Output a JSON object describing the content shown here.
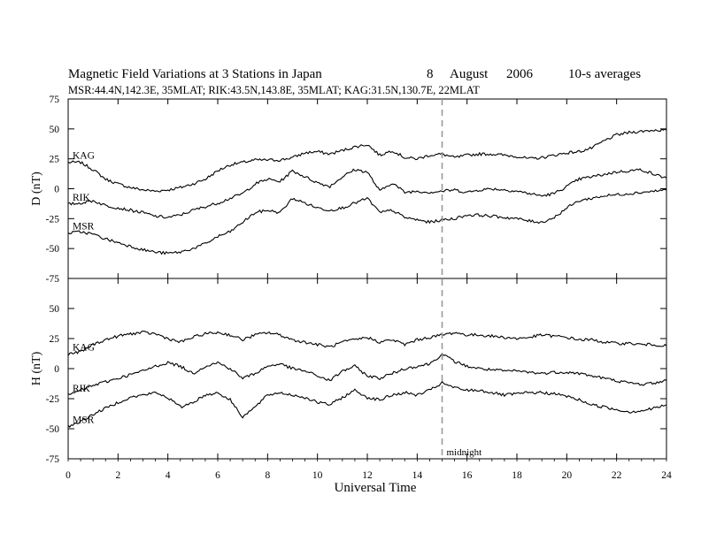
{
  "chart_data": {
    "type": "line",
    "title_parts": [
      "Magnetic Field Variations at 3 Stations in Japan",
      "8",
      "August",
      "2006",
      "10-s averages"
    ],
    "subtitle": "MSR:44.4N,142.3E, 35MLAT;   RIK:43.5N,143.8E, 35MLAT;   KAG:31.5N,130.7E, 22MLAT",
    "xlabel": "Universal Time",
    "xlim": [
      0,
      24
    ],
    "x_ticks": [
      0,
      2,
      4,
      6,
      8,
      10,
      12,
      14,
      16,
      18,
      20,
      22,
      24
    ],
    "x_tick_labels": [
      "0",
      "2",
      "4",
      "6",
      "8",
      "10",
      "12",
      "14",
      "16",
      "18",
      "20",
      "22",
      "24"
    ],
    "annotation": {
      "x": 15,
      "label": "midnight",
      "style": "dashed"
    },
    "panels": [
      {
        "ylabel": "D (nT)",
        "ylim": [
          -75,
          75
        ],
        "y_tick_labels": [
          "75",
          "50",
          "25",
          "0",
          "-25",
          "-50",
          "-75"
        ],
        "series": [
          {
            "name": "KAG",
            "x": [
              0,
              0.5,
              1,
              1.5,
              2,
              2.5,
              3,
              3.5,
              4,
              4.5,
              5,
              5.5,
              6,
              6.5,
              7,
              7.5,
              8,
              8.5,
              9,
              9.5,
              10,
              10.5,
              11,
              11.5,
              12,
              12.5,
              13,
              13.5,
              14,
              14.5,
              15,
              15.5,
              16,
              16.5,
              17,
              17.5,
              18,
              18.5,
              19,
              19.5,
              20,
              20.5,
              21,
              21.5,
              22,
              22.5,
              23,
              23.5,
              24
            ],
            "values": [
              22,
              22,
              16,
              8,
              4,
              1,
              -1,
              -2,
              -1,
              1,
              4,
              8,
              15,
              20,
              22,
              24,
              24,
              24,
              26,
              30,
              31,
              29,
              32,
              35,
              37,
              28,
              32,
              26,
              25,
              28,
              29,
              26,
              28,
              29,
              29,
              28,
              27,
              25,
              26,
              28,
              30,
              31,
              34,
              40,
              45,
              47,
              48,
              49,
              49
            ]
          },
          {
            "name": "RIK",
            "x": [
              0,
              0.5,
              1,
              1.5,
              2,
              2.5,
              3,
              3.5,
              4,
              4.5,
              5,
              5.5,
              6,
              6.5,
              7,
              7.5,
              8,
              8.5,
              9,
              9.5,
              10,
              10.5,
              11,
              11.5,
              12,
              12.5,
              13,
              13.5,
              14,
              14.5,
              15,
              15.5,
              16,
              16.5,
              17,
              17.5,
              18,
              18.5,
              19,
              19.5,
              20,
              20.5,
              21,
              21.5,
              22,
              22.5,
              23,
              23.5,
              24
            ],
            "values": [
              -13,
              -12,
              -10,
              -14,
              -16,
              -18,
              -20,
              -23,
              -24,
              -22,
              -18,
              -15,
              -12,
              -8,
              -4,
              4,
              8,
              6,
              15,
              10,
              5,
              2,
              10,
              16,
              14,
              -2,
              5,
              -3,
              -2,
              -3,
              -2,
              -1,
              -3,
              -1,
              0,
              -1,
              -2,
              -4,
              -6,
              -4,
              2,
              8,
              10,
              12,
              14,
              15,
              16,
              12,
              9
            ]
          },
          {
            "name": "MSR",
            "x": [
              0,
              0.5,
              1,
              1.5,
              2,
              2.5,
              3,
              3.5,
              4,
              4.5,
              5,
              5.5,
              6,
              6.5,
              7,
              7.5,
              8,
              8.5,
              9,
              9.5,
              10,
              10.5,
              11,
              11.5,
              12,
              12.5,
              13,
              13.5,
              14,
              14.5,
              15,
              15.5,
              16,
              16.5,
              17,
              17.5,
              18,
              18.5,
              19,
              19.5,
              20,
              20.5,
              21,
              21.5,
              22,
              22.5,
              23,
              23.5,
              24
            ],
            "values": [
              -37,
              -36,
              -38,
              -42,
              -45,
              -48,
              -51,
              -53,
              -54,
              -53,
              -50,
              -46,
              -40,
              -36,
              -28,
              -20,
              -18,
              -20,
              -8,
              -12,
              -16,
              -18,
              -16,
              -12,
              -8,
              -20,
              -18,
              -24,
              -26,
              -28,
              -26,
              -25,
              -22,
              -22,
              -23,
              -24,
              -25,
              -27,
              -28,
              -24,
              -16,
              -10,
              -8,
              -6,
              -5,
              -4,
              -3,
              -2,
              -1
            ]
          }
        ]
      },
      {
        "ylabel": "H (nT)",
        "ylim": [
          -75,
          75
        ],
        "y_tick_labels": [
          "75",
          "50",
          "25",
          "0",
          "-25",
          "-50",
          "-75"
        ],
        "series": [
          {
            "name": "KAG",
            "x": [
              0,
              0.5,
              1,
              1.5,
              2,
              2.5,
              3,
              3.5,
              4,
              4.5,
              5,
              5.5,
              6,
              6.5,
              7,
              7.5,
              8,
              8.5,
              9,
              9.5,
              10,
              10.5,
              11,
              11.5,
              12,
              12.5,
              13,
              13.5,
              14,
              14.5,
              15,
              15.5,
              16,
              16.5,
              17,
              17.5,
              18,
              18.5,
              19,
              19.5,
              20,
              20.5,
              21,
              21.5,
              22,
              22.5,
              23,
              23.5,
              24
            ],
            "values": [
              12,
              14,
              20,
              24,
              27,
              29,
              30,
              29,
              25,
              22,
              26,
              29,
              30,
              28,
              24,
              28,
              30,
              28,
              24,
              22,
              20,
              18,
              22,
              24,
              26,
              22,
              24,
              20,
              24,
              26,
              28,
              30,
              28,
              28,
              27,
              26,
              25,
              26,
              28,
              27,
              26,
              24,
              24,
              22,
              21,
              21,
              20,
              20,
              19
            ]
          },
          {
            "name": "RIK",
            "x": [
              0,
              0.5,
              1,
              1.5,
              2,
              2.5,
              3,
              3.5,
              4,
              4.5,
              5,
              5.5,
              6,
              6.5,
              7,
              7.5,
              8,
              8.5,
              9,
              9.5,
              10,
              10.5,
              11,
              11.5,
              12,
              12.5,
              13,
              13.5,
              14,
              14.5,
              15,
              15.5,
              16,
              16.5,
              17,
              17.5,
              18,
              18.5,
              19,
              19.5,
              20,
              20.5,
              21,
              21.5,
              22,
              22.5,
              23,
              23.5,
              24
            ],
            "values": [
              -22,
              -18,
              -14,
              -11,
              -8,
              -5,
              -2,
              2,
              5,
              2,
              -4,
              2,
              5,
              0,
              -8,
              -4,
              2,
              4,
              0,
              -2,
              -6,
              -10,
              -2,
              2,
              -6,
              -8,
              -4,
              0,
              2,
              4,
              12,
              6,
              2,
              0,
              -1,
              -2,
              -2,
              -3,
              -4,
              -3,
              -3,
              -4,
              -6,
              -8,
              -10,
              -12,
              -13,
              -12,
              -10
            ]
          },
          {
            "name": "MSR",
            "x": [
              0,
              0.5,
              1,
              1.5,
              2,
              2.5,
              3,
              3.5,
              4,
              4.5,
              5,
              5.5,
              6,
              6.5,
              7,
              7.5,
              8,
              8.5,
              9,
              9.5,
              10,
              10.5,
              11,
              11.5,
              12,
              12.5,
              13,
              13.5,
              14,
              14.5,
              15,
              15.5,
              16,
              16.5,
              17,
              17.5,
              18,
              18.5,
              19,
              19.5,
              20,
              20.5,
              21,
              21.5,
              22,
              22.5,
              23,
              23.5,
              24
            ],
            "values": [
              -48,
              -44,
              -38,
              -33,
              -28,
              -24,
              -22,
              -20,
              -24,
              -32,
              -28,
              -22,
              -20,
              -26,
              -40,
              -32,
              -22,
              -20,
              -22,
              -24,
              -28,
              -30,
              -24,
              -18,
              -24,
              -26,
              -22,
              -20,
              -22,
              -18,
              -12,
              -16,
              -18,
              -18,
              -20,
              -22,
              -21,
              -20,
              -20,
              -21,
              -23,
              -26,
              -30,
              -32,
              -34,
              -36,
              -35,
              -33,
              -30
            ]
          }
        ]
      }
    ]
  }
}
